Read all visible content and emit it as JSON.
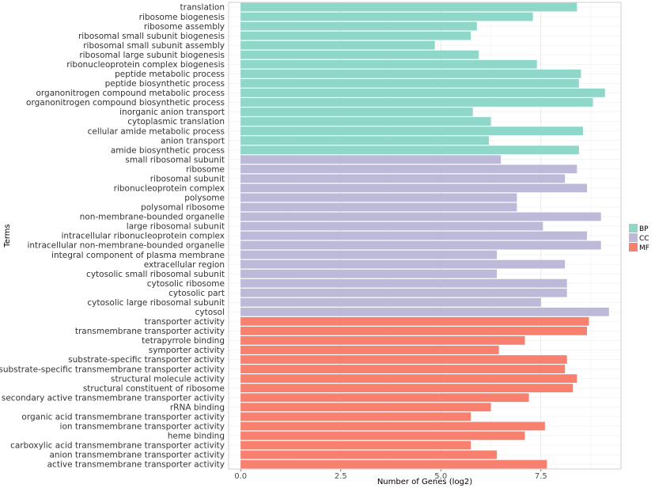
{
  "chart_data": {
    "type": "bar",
    "orientation": "horizontal",
    "xlabel": "Number of Genes (log2)",
    "ylabel": "Terms",
    "xlim": [
      -0.3,
      9.5
    ],
    "xticks": [
      0.0,
      2.5,
      5.0,
      7.5
    ],
    "xtick_labels": [
      "0.0",
      "2.5",
      "5.0",
      "7.5"
    ],
    "grid": true,
    "legend_position": "right",
    "legend": [
      {
        "key": "BP",
        "label": "BP",
        "color": "#8fd7c9"
      },
      {
        "key": "CC",
        "label": "CC",
        "color": "#bcb9d9"
      },
      {
        "key": "MF",
        "label": "MF",
        "color": "#f8806f"
      }
    ],
    "bars": [
      {
        "term": "translation",
        "value": 8.4,
        "group": "BP"
      },
      {
        "term": "ribosome biogenesis",
        "value": 7.3,
        "group": "BP"
      },
      {
        "term": "ribosome assembly",
        "value": 5.9,
        "group": "BP"
      },
      {
        "term": "ribosomal small subunit biogenesis",
        "value": 5.75,
        "group": "BP"
      },
      {
        "term": "ribosomal small subunit assembly",
        "value": 4.85,
        "group": "BP"
      },
      {
        "term": "ribosomal large subunit biogenesis",
        "value": 5.95,
        "group": "BP"
      },
      {
        "term": "ribonucleoprotein complex biogenesis",
        "value": 7.4,
        "group": "BP"
      },
      {
        "term": "peptide metabolic process",
        "value": 8.5,
        "group": "BP"
      },
      {
        "term": "peptide biosynthetic process",
        "value": 8.45,
        "group": "BP"
      },
      {
        "term": "organonitrogen compound metabolic process",
        "value": 9.1,
        "group": "BP"
      },
      {
        "term": "organonitrogen compound biosynthetic process",
        "value": 8.8,
        "group": "BP"
      },
      {
        "term": "inorganic anion transport",
        "value": 5.8,
        "group": "BP"
      },
      {
        "term": "cytoplasmic translation",
        "value": 6.25,
        "group": "BP"
      },
      {
        "term": "cellular amide metabolic process",
        "value": 8.55,
        "group": "BP"
      },
      {
        "term": "anion transport",
        "value": 6.2,
        "group": "BP"
      },
      {
        "term": "amide biosynthetic process",
        "value": 8.45,
        "group": "BP"
      },
      {
        "term": "small ribosomal subunit",
        "value": 6.5,
        "group": "CC"
      },
      {
        "term": "ribosome",
        "value": 8.4,
        "group": "CC"
      },
      {
        "term": "ribosomal subunit",
        "value": 8.1,
        "group": "CC"
      },
      {
        "term": "ribonucleoprotein complex",
        "value": 8.65,
        "group": "CC"
      },
      {
        "term": "polysome",
        "value": 6.9,
        "group": "CC"
      },
      {
        "term": "polysomal ribosome",
        "value": 6.9,
        "group": "CC"
      },
      {
        "term": "non-membrane-bounded organelle",
        "value": 9.0,
        "group": "CC"
      },
      {
        "term": "large ribosomal subunit",
        "value": 7.55,
        "group": "CC"
      },
      {
        "term": "intracellular ribonucleoprotein complex",
        "value": 8.65,
        "group": "CC"
      },
      {
        "term": "intracellular non-membrane-bounded organelle",
        "value": 9.0,
        "group": "CC"
      },
      {
        "term": "integral component of plasma membrane",
        "value": 6.4,
        "group": "CC"
      },
      {
        "term": "extracellular region",
        "value": 8.1,
        "group": "CC"
      },
      {
        "term": "cytosolic small ribosomal subunit",
        "value": 6.4,
        "group": "CC"
      },
      {
        "term": "cytosolic ribosome",
        "value": 8.15,
        "group": "CC"
      },
      {
        "term": "cytosolic part",
        "value": 8.15,
        "group": "CC"
      },
      {
        "term": "cytosolic large ribosomal subunit",
        "value": 7.5,
        "group": "CC"
      },
      {
        "term": "cytosol",
        "value": 9.2,
        "group": "CC"
      },
      {
        "term": "transporter activity",
        "value": 8.7,
        "group": "MF"
      },
      {
        "term": "transmembrane transporter activity",
        "value": 8.65,
        "group": "MF"
      },
      {
        "term": "tetrapyrrole binding",
        "value": 7.1,
        "group": "MF"
      },
      {
        "term": "symporter activity",
        "value": 6.45,
        "group": "MF"
      },
      {
        "term": "substrate-specific transporter activity",
        "value": 8.15,
        "group": "MF"
      },
      {
        "term": "substrate-specific transmembrane transporter activity",
        "value": 8.1,
        "group": "MF"
      },
      {
        "term": "structural molecule activity",
        "value": 8.4,
        "group": "MF"
      },
      {
        "term": "structural constituent of ribosome",
        "value": 8.3,
        "group": "MF"
      },
      {
        "term": "secondary active transmembrane transporter activity",
        "value": 7.2,
        "group": "MF"
      },
      {
        "term": "rRNA binding",
        "value": 6.25,
        "group": "MF"
      },
      {
        "term": "organic acid transmembrane transporter activity",
        "value": 5.75,
        "group": "MF"
      },
      {
        "term": "ion transmembrane transporter activity",
        "value": 7.6,
        "group": "MF"
      },
      {
        "term": "heme binding",
        "value": 7.1,
        "group": "MF"
      },
      {
        "term": "carboxylic acid transmembrane transporter activity",
        "value": 5.75,
        "group": "MF"
      },
      {
        "term": "anion transmembrane transporter activity",
        "value": 6.4,
        "group": "MF"
      },
      {
        "term": "active transmembrane transporter activity",
        "value": 7.65,
        "group": "MF"
      }
    ]
  }
}
